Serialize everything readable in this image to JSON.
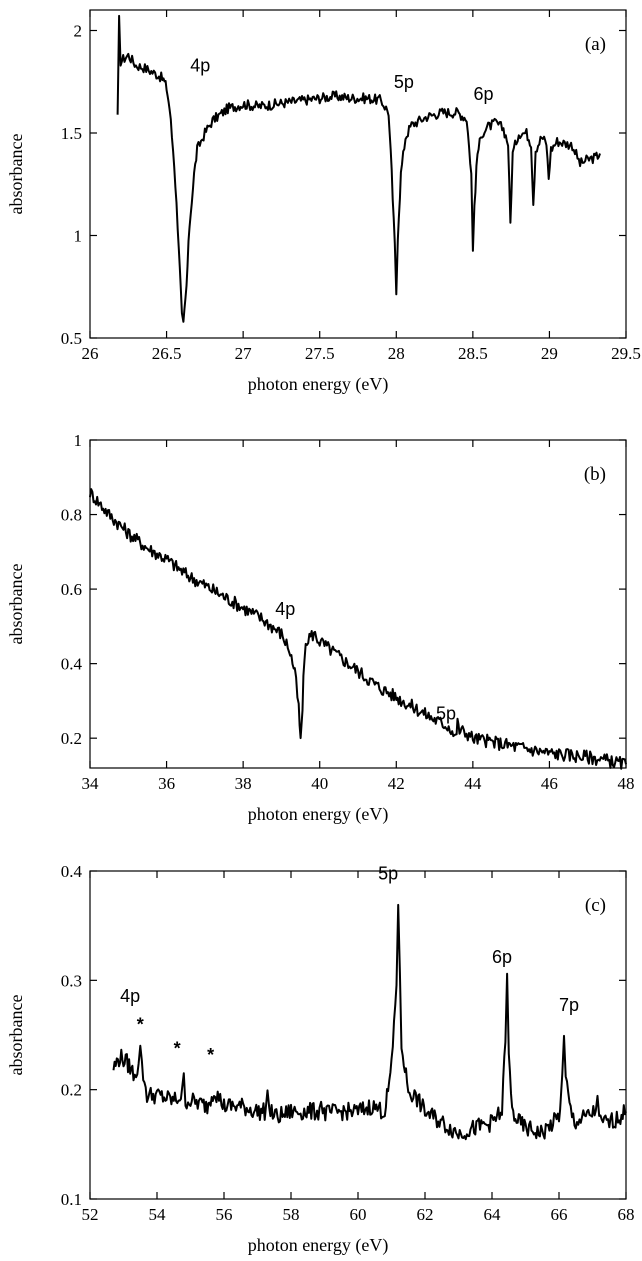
{
  "chart_data": [
    {
      "type": "line",
      "panel_label": "(a)",
      "xlabel": "photon energy (eV)",
      "ylabel": "absorbance",
      "xlim": [
        26,
        29.5
      ],
      "ylim": [
        0.5,
        2.1
      ],
      "x_ticks": [
        26,
        26.5,
        27,
        27.5,
        28,
        28.5,
        29,
        29.5
      ],
      "x_tick_labels": [
        "26",
        "26.5",
        "27",
        "27.5",
        "28",
        "28.5",
        "29",
        "29.5"
      ],
      "y_ticks": [
        0.5,
        1,
        1.5,
        2
      ],
      "y_tick_labels": [
        "0.5",
        "1",
        "1.5",
        "2"
      ],
      "annotations": [
        {
          "text": "4p",
          "x": 26.72,
          "y": 1.8
        },
        {
          "text": "5p",
          "x": 28.05,
          "y": 1.72
        },
        {
          "text": "6p",
          "x": 28.57,
          "y": 1.66
        }
      ],
      "series": [
        {
          "x": [
            26.18,
            26.19,
            26.2,
            26.25,
            26.3,
            26.35,
            26.4,
            26.45,
            26.48,
            26.5,
            26.52,
            26.55,
            26.58,
            26.6,
            26.61,
            26.63,
            26.65,
            26.68,
            26.7,
            26.75,
            26.8,
            26.9,
            27.0,
            27.1,
            27.2,
            27.3,
            27.4,
            27.5,
            27.6,
            27.7,
            27.8,
            27.9,
            27.95,
            27.97,
            27.99,
            28.0,
            28.01,
            28.03,
            28.06,
            28.1,
            28.15,
            28.2,
            28.3,
            28.4,
            28.46,
            28.49,
            28.5,
            28.51,
            28.53,
            28.56,
            28.6,
            28.65,
            28.7,
            28.73,
            28.745,
            28.76,
            28.8,
            28.85,
            28.88,
            28.895,
            28.91,
            28.95,
            28.98,
            28.995,
            29.01,
            29.05,
            29.1,
            29.15,
            29.2,
            29.25,
            29.3,
            29.33
          ],
          "y": [
            1.57,
            2.05,
            1.85,
            1.88,
            1.83,
            1.82,
            1.8,
            1.78,
            1.76,
            1.72,
            1.62,
            1.35,
            0.95,
            0.6,
            0.56,
            0.75,
            1.05,
            1.3,
            1.42,
            1.5,
            1.56,
            1.62,
            1.64,
            1.63,
            1.64,
            1.65,
            1.66,
            1.67,
            1.68,
            1.67,
            1.67,
            1.66,
            1.6,
            1.3,
            0.95,
            0.72,
            1.0,
            1.3,
            1.48,
            1.54,
            1.56,
            1.58,
            1.6,
            1.6,
            1.57,
            1.3,
            0.92,
            1.15,
            1.4,
            1.5,
            1.53,
            1.55,
            1.52,
            1.45,
            1.06,
            1.4,
            1.5,
            1.5,
            1.45,
            1.16,
            1.42,
            1.48,
            1.45,
            1.28,
            1.42,
            1.46,
            1.45,
            1.44,
            1.35,
            1.37,
            1.38,
            1.4
          ]
        }
      ]
    },
    {
      "type": "line",
      "panel_label": "(b)",
      "xlabel": "photon energy (eV)",
      "ylabel": "absorbance",
      "xlim": [
        34,
        48
      ],
      "ylim": [
        0.12,
        1.0
      ],
      "x_ticks": [
        34,
        36,
        38,
        40,
        42,
        44,
        46,
        48
      ],
      "x_tick_labels": [
        "34",
        "36",
        "38",
        "40",
        "42",
        "44",
        "46",
        "48"
      ],
      "y_ticks": [
        0.2,
        0.4,
        0.6,
        0.8,
        1
      ],
      "y_tick_labels": [
        "0.2",
        "0.4",
        "0.6",
        "0.8",
        "1"
      ],
      "annotations": [
        {
          "text": "4p",
          "x": 39.1,
          "y": 0.53
        },
        {
          "text": "5p",
          "x": 43.3,
          "y": 0.25
        }
      ],
      "series": [
        {
          "x": [
            34.0,
            34.5,
            35.0,
            35.5,
            36.0,
            36.5,
            37.0,
            37.5,
            38.0,
            38.5,
            39.0,
            39.2,
            39.35,
            39.45,
            39.5,
            39.55,
            39.6,
            39.7,
            39.85,
            40.0,
            40.5,
            41.0,
            41.5,
            42.0,
            42.5,
            43.0,
            43.4,
            43.55,
            43.6,
            43.65,
            43.7,
            43.9,
            44.0,
            44.5,
            45.0,
            45.5,
            46.0,
            46.5,
            47.0,
            47.5,
            48.0
          ],
          "y": [
            0.86,
            0.8,
            0.75,
            0.71,
            0.68,
            0.64,
            0.61,
            0.58,
            0.55,
            0.52,
            0.48,
            0.44,
            0.38,
            0.28,
            0.19,
            0.28,
            0.42,
            0.47,
            0.48,
            0.46,
            0.42,
            0.38,
            0.34,
            0.31,
            0.28,
            0.25,
            0.23,
            0.2,
            0.24,
            0.22,
            0.22,
            0.21,
            0.2,
            0.19,
            0.18,
            0.17,
            0.16,
            0.155,
            0.15,
            0.14,
            0.13
          ]
        }
      ]
    },
    {
      "type": "line",
      "panel_label": "(c)",
      "xlabel": "photon energy (eV)",
      "ylabel": "absorbance",
      "xlim": [
        52,
        68
      ],
      "ylim": [
        0.1,
        0.4
      ],
      "x_ticks": [
        52,
        54,
        56,
        58,
        60,
        62,
        64,
        66,
        68
      ],
      "x_tick_labels": [
        "52",
        "54",
        "56",
        "58",
        "60",
        "62",
        "64",
        "66",
        "68"
      ],
      "y_ticks": [
        0.1,
        0.2,
        0.3,
        0.4
      ],
      "y_tick_labels": [
        "0.1",
        "0.2",
        "0.3",
        "0.4"
      ],
      "annotations": [
        {
          "text": "4p",
          "x": 53.2,
          "y": 0.28
        },
        {
          "text": "5p",
          "x": 60.9,
          "y": 0.392
        },
        {
          "text": "6p",
          "x": 64.3,
          "y": 0.316
        },
        {
          "text": "7p",
          "x": 66.3,
          "y": 0.272
        }
      ],
      "stars": [
        {
          "text": "*",
          "x": 53.5,
          "y": 0.254
        },
        {
          "text": "*",
          "x": 54.6,
          "y": 0.232
        },
        {
          "text": "*",
          "x": 55.6,
          "y": 0.226
        }
      ],
      "series": [
        {
          "x": [
            52.7,
            52.9,
            53.1,
            53.3,
            53.45,
            53.5,
            53.55,
            53.7,
            54.0,
            54.5,
            54.75,
            54.8,
            54.85,
            55.0,
            55.5,
            55.7,
            56.0,
            56.5,
            57.0,
            57.25,
            57.3,
            57.35,
            57.6,
            58.0,
            58.5,
            58.85,
            58.9,
            58.95,
            59.5,
            60.0,
            60.4,
            60.8,
            61.0,
            61.15,
            61.2,
            61.25,
            61.3,
            61.5,
            61.8,
            62.0,
            62.5,
            63.0,
            63.5,
            64.0,
            64.3,
            64.4,
            64.45,
            64.5,
            64.6,
            64.8,
            65.0,
            65.5,
            66.0,
            66.1,
            66.15,
            66.2,
            66.35,
            66.5,
            66.8,
            67.1,
            67.15,
            67.2,
            67.5,
            67.8,
            68.0
          ],
          "y": [
            0.22,
            0.23,
            0.225,
            0.215,
            0.22,
            0.245,
            0.22,
            0.195,
            0.195,
            0.19,
            0.195,
            0.21,
            0.19,
            0.19,
            0.185,
            0.2,
            0.185,
            0.185,
            0.18,
            0.18,
            0.205,
            0.18,
            0.175,
            0.18,
            0.18,
            0.18,
            0.195,
            0.178,
            0.18,
            0.18,
            0.185,
            0.18,
            0.22,
            0.3,
            0.37,
            0.3,
            0.24,
            0.2,
            0.19,
            0.18,
            0.17,
            0.16,
            0.165,
            0.17,
            0.18,
            0.25,
            0.3,
            0.23,
            0.18,
            0.17,
            0.165,
            0.16,
            0.175,
            0.21,
            0.245,
            0.21,
            0.18,
            0.17,
            0.175,
            0.18,
            0.2,
            0.17,
            0.17,
            0.175,
            0.18
          ]
        }
      ]
    }
  ]
}
